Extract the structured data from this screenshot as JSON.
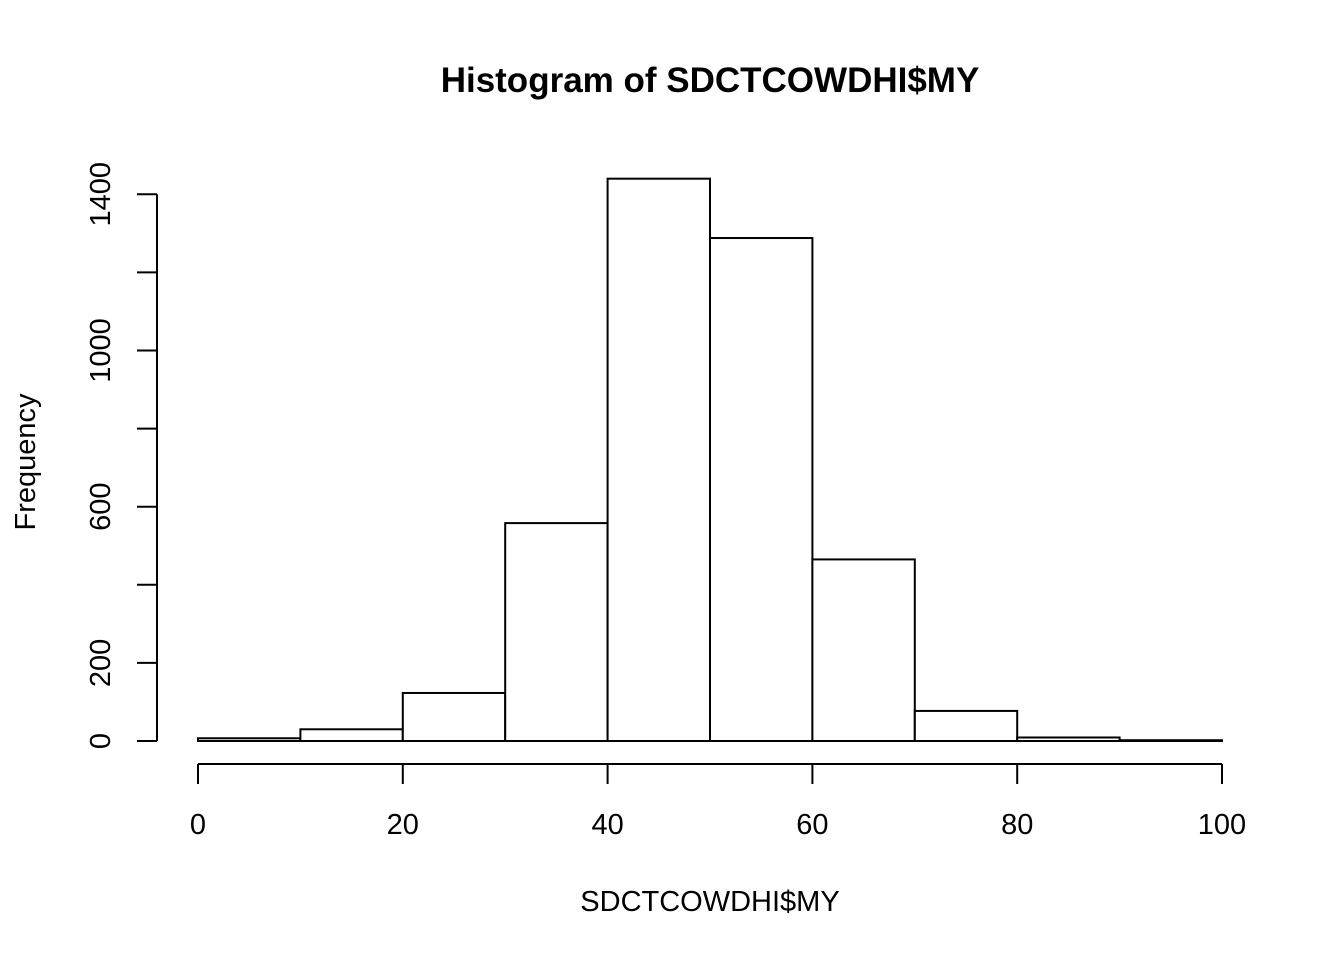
{
  "chart_data": {
    "type": "bar",
    "title": "Histogram of SDCTCOWDHI$MY",
    "xlabel": "SDCTCOWDHI$MY",
    "ylabel": "Frequency",
    "bins": [
      {
        "from": 0,
        "to": 10,
        "count": 7
      },
      {
        "from": 10,
        "to": 20,
        "count": 30
      },
      {
        "from": 20,
        "to": 30,
        "count": 123
      },
      {
        "from": 30,
        "to": 40,
        "count": 558
      },
      {
        "from": 40,
        "to": 50,
        "count": 1440
      },
      {
        "from": 50,
        "to": 60,
        "count": 1288
      },
      {
        "from": 60,
        "to": 70,
        "count": 465
      },
      {
        "from": 70,
        "to": 80,
        "count": 77
      },
      {
        "from": 80,
        "to": 90,
        "count": 9
      },
      {
        "from": 90,
        "to": 100,
        "count": 2
      }
    ],
    "xlim": [
      0,
      100
    ],
    "ylim": [
      0,
      1440
    ],
    "xticks": [
      0,
      20,
      40,
      60,
      80,
      100
    ],
    "xtick_labels": [
      "0",
      "20",
      "40",
      "60",
      "80",
      "100"
    ],
    "yticks": [
      0,
      200,
      400,
      600,
      800,
      1000,
      1200,
      1400
    ],
    "ytick_labels": [
      "0",
      "200",
      "",
      "600",
      "",
      "1000",
      "",
      "1400"
    ],
    "grid": false,
    "legend": "none",
    "bar_fill": "#ffffff",
    "bar_stroke": "#000000"
  }
}
